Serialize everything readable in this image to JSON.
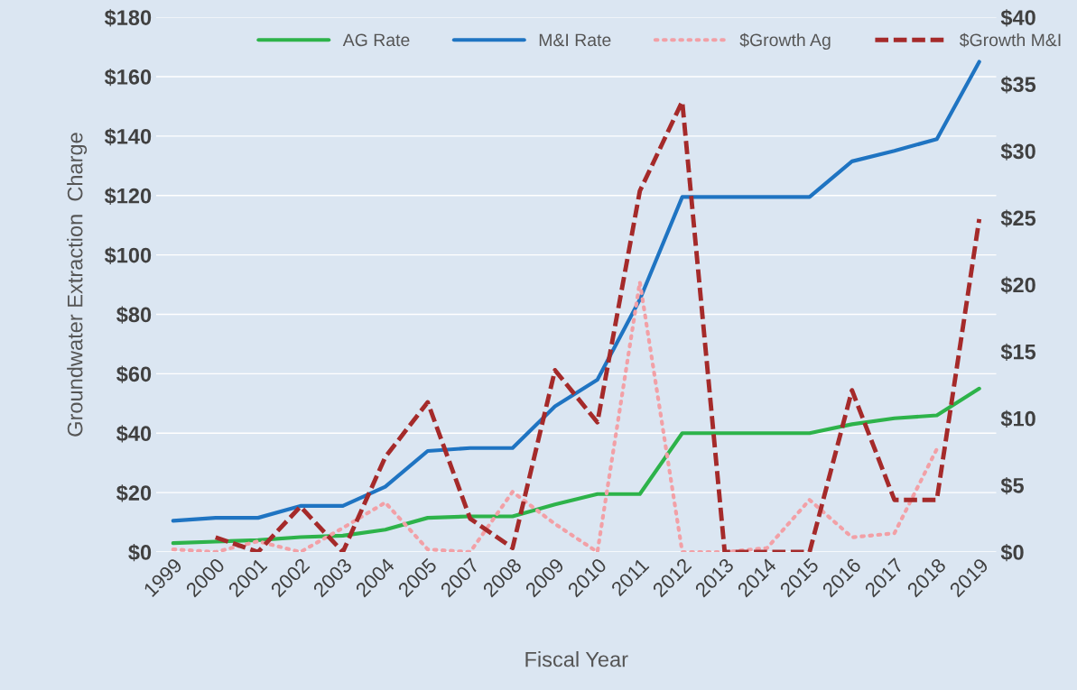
{
  "chart_data": {
    "type": "line",
    "xlabel": "Fiscal Year",
    "ylabel": "Groundwater Extraction  Charge",
    "categories": [
      "1999",
      "2000",
      "2001",
      "2002",
      "2003",
      "2004",
      "2005",
      "2007",
      "2008",
      "2009",
      "2010",
      "2011",
      "2012",
      "2013",
      "2014",
      "2015",
      "2016",
      "2017",
      "2018",
      "2019"
    ],
    "series": [
      {
        "name": "AG Rate",
        "color": "#2db34a",
        "line_style": "solid",
        "values": [
          3,
          3.5,
          4,
          5,
          5.5,
          7.5,
          11.5,
          12,
          12,
          16,
          19.5,
          19.5,
          40,
          40,
          40,
          40,
          43,
          45,
          46,
          55
        ]
      },
      {
        "name": "M&I Rate",
        "color": "#1f74c2",
        "line_style": "solid",
        "values": [
          10.5,
          11.5,
          11.5,
          15.5,
          15.5,
          22,
          34,
          35,
          35,
          49,
          58,
          85,
          119.5,
          119.5,
          119.5,
          119.5,
          131.5,
          135,
          139,
          165
        ]
      },
      {
        "name": "$Growth Ag",
        "color": "#f2a0a6",
        "line_style": "dotted",
        "axis": "y2",
        "values": [
          0.2,
          0,
          0.8,
          0,
          1.8,
          3.7,
          0.2,
          0,
          4.5,
          2.1,
          0,
          20.2,
          0,
          0,
          0.3,
          3.9,
          1.1,
          1.4,
          7.7,
          null
        ]
      },
      {
        "name": "$Growth M&I",
        "color": "#a52a2a",
        "line_style": "dashed",
        "axis": "y2",
        "values": [
          null,
          1.1,
          0,
          3.4,
          0,
          7.1,
          11.2,
          2.5,
          0.3,
          13.6,
          9.7,
          27,
          33.7,
          0,
          0,
          0,
          12.1,
          3.9,
          3.9,
          24.9
        ]
      }
    ],
    "ylim": [
      0,
      180
    ],
    "yticks": [
      {
        "value": 0,
        "label": "$0"
      },
      {
        "value": 20,
        "label": "$20"
      },
      {
        "value": 40,
        "label": "$40"
      },
      {
        "value": 60,
        "label": "$60"
      },
      {
        "value": 80,
        "label": "$80"
      },
      {
        "value": 100,
        "label": "$100"
      },
      {
        "value": 120,
        "label": "$120"
      },
      {
        "value": 140,
        "label": "$140"
      },
      {
        "value": 160,
        "label": "$160"
      },
      {
        "value": 180,
        "label": "$180"
      }
    ],
    "y2lim": [
      0,
      40
    ],
    "y2ticks": [
      {
        "value": 0,
        "label": "$0"
      },
      {
        "value": 5,
        "label": "$5"
      },
      {
        "value": 10,
        "label": "$10"
      },
      {
        "value": 15,
        "label": "$15"
      },
      {
        "value": 20,
        "label": "$20"
      },
      {
        "value": 25,
        "label": "$25"
      },
      {
        "value": 30,
        "label": "$30"
      },
      {
        "value": 35,
        "label": "$35"
      },
      {
        "value": 40,
        "label": "$40"
      }
    ],
    "grid": "y",
    "legend": "top",
    "marker": "none"
  }
}
